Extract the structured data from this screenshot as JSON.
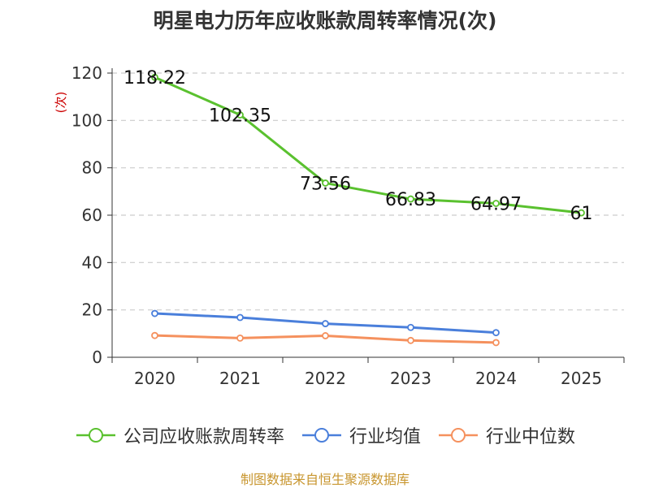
{
  "chart_data": {
    "type": "line",
    "title": "明星电力历年应收账款周转率情况(次)",
    "ylabel": "(次)",
    "categories": [
      "2020",
      "2021",
      "2022",
      "2023",
      "2024",
      "2025"
    ],
    "ylim": [
      0,
      120
    ],
    "yticks": [
      0,
      20,
      40,
      60,
      80,
      100,
      120
    ],
    "grid": true,
    "legend_position": "bottom",
    "series": [
      {
        "name": "公司应收账款周转率",
        "color": "#5ac12f",
        "values": [
          118.22,
          102.35,
          73.56,
          66.83,
          64.97,
          61
        ],
        "labels": [
          "118.22",
          "102.35",
          "73.56",
          "66.83",
          "64.97",
          "61"
        ]
      },
      {
        "name": "行业均值",
        "color": "#4a7fdb",
        "values": [
          18.5,
          16.8,
          14.2,
          12.6,
          10.4,
          null
        ]
      },
      {
        "name": "行业中位数",
        "color": "#f5915e",
        "values": [
          9.2,
          8.1,
          9.1,
          7.1,
          6.2,
          null
        ]
      }
    ]
  },
  "source": "制图数据来自恒生聚源数据库"
}
